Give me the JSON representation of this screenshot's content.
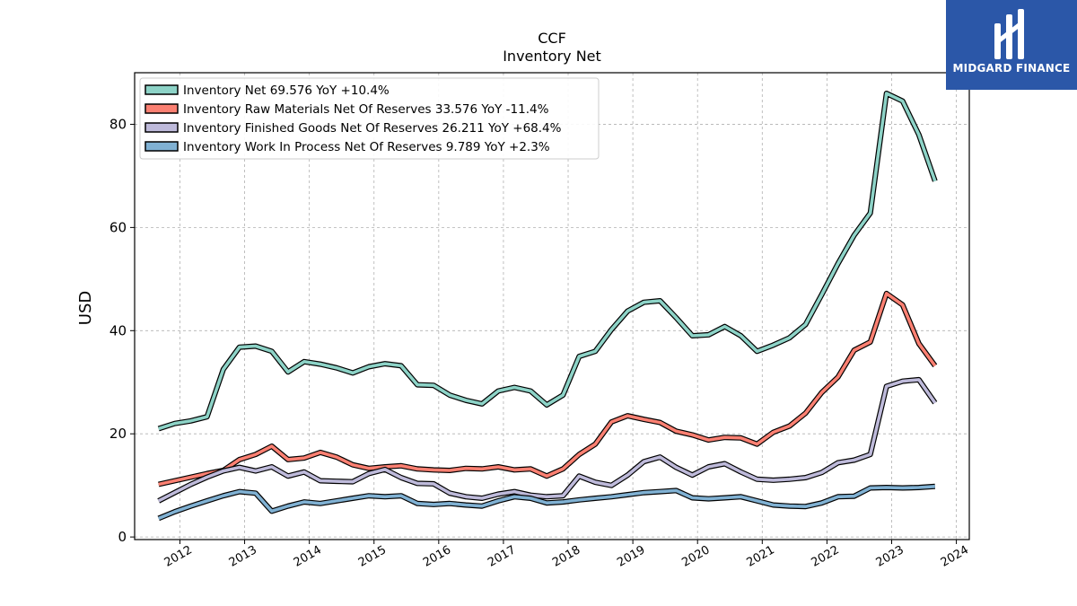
{
  "brand": {
    "name": "MIDGARD FINANCE",
    "logo_icon": "midgard-logo-icon",
    "background": "#2b57a8"
  },
  "chart_data": {
    "type": "line",
    "title": "CCF",
    "subtitle": "Inventory Net",
    "xlabel": "",
    "ylabel": "USD",
    "xlim": [
      2011.3,
      2024.2
    ],
    "ylim": [
      -0.5,
      90
    ],
    "x_ticks": [
      "2012",
      "2013",
      "2014",
      "2015",
      "2016",
      "2017",
      "2018",
      "2019",
      "2020",
      "2021",
      "2022",
      "2023",
      "2024"
    ],
    "y_ticks": [
      "0",
      "20",
      "40",
      "60",
      "80"
    ],
    "grid": true,
    "legend_position": "top-left",
    "series": [
      {
        "name": "Inventory Net  69.576 YoY +10.4%",
        "color": "#8dd3c7",
        "x": [
          2011.67,
          2011.92,
          2012.17,
          2012.42,
          2012.67,
          2012.92,
          2013.17,
          2013.42,
          2013.67,
          2013.92,
          2014.17,
          2014.42,
          2014.67,
          2014.92,
          2015.17,
          2015.42,
          2015.67,
          2015.92,
          2016.17,
          2016.42,
          2016.67,
          2016.92,
          2017.17,
          2017.42,
          2017.67,
          2017.92,
          2018.17,
          2018.42,
          2018.67,
          2018.92,
          2019.17,
          2019.42,
          2019.67,
          2019.92,
          2020.17,
          2020.42,
          2020.67,
          2020.92,
          2021.17,
          2021.42,
          2021.67,
          2021.92,
          2022.17,
          2022.42,
          2022.67,
          2022.92,
          2023.17,
          2023.42,
          2023.67
        ],
        "values": [
          21.0,
          22.0,
          22.5,
          23.3,
          32.5,
          36.8,
          37.0,
          36.0,
          32.0,
          34.0,
          33.5,
          32.8,
          31.8,
          33.0,
          33.6,
          33.2,
          29.5,
          29.4,
          27.5,
          26.5,
          25.8,
          28.3,
          29.0,
          28.3,
          25.6,
          27.5,
          35.0,
          36.0,
          40.2,
          43.8,
          45.5,
          45.8,
          42.5,
          39.0,
          39.2,
          40.8,
          39.0,
          36.0,
          37.2,
          38.6,
          41.2,
          47.0,
          53.0,
          58.5,
          62.8,
          86.0,
          84.5,
          78.0,
          69.0
        ]
      },
      {
        "name": "Inventory Raw Materials Net Of Reserves  33.576 YoY -11.4%",
        "color": "#fb8072",
        "x": [
          2011.67,
          2011.92,
          2012.17,
          2012.42,
          2012.67,
          2012.92,
          2013.17,
          2013.42,
          2013.67,
          2013.92,
          2014.17,
          2014.42,
          2014.67,
          2014.92,
          2015.17,
          2015.42,
          2015.67,
          2015.92,
          2016.17,
          2016.42,
          2016.67,
          2016.92,
          2017.17,
          2017.42,
          2017.67,
          2017.92,
          2018.17,
          2018.42,
          2018.67,
          2018.92,
          2019.17,
          2019.42,
          2019.67,
          2019.92,
          2020.17,
          2020.42,
          2020.67,
          2020.92,
          2021.17,
          2021.42,
          2021.67,
          2021.92,
          2022.17,
          2022.42,
          2022.67,
          2022.92,
          2023.17,
          2023.42,
          2023.67
        ],
        "values": [
          10.2,
          10.9,
          11.6,
          12.3,
          12.9,
          15.0,
          16.0,
          17.6,
          15.0,
          15.3,
          16.4,
          15.5,
          14.0,
          13.3,
          13.6,
          13.8,
          13.2,
          13.0,
          12.9,
          13.3,
          13.2,
          13.6,
          13.0,
          13.2,
          11.8,
          13.2,
          16.0,
          18.0,
          22.3,
          23.5,
          22.8,
          22.2,
          20.5,
          19.8,
          18.8,
          19.3,
          19.2,
          18.0,
          20.3,
          21.5,
          24.0,
          28.0,
          31.0,
          36.2,
          37.8,
          47.2,
          45.0,
          37.5,
          33.2
        ]
      },
      {
        "name": "Inventory Finished Goods Net Of Reserves  26.211 YoY +68.4%",
        "color": "#bebada",
        "x": [
          2011.67,
          2011.92,
          2012.17,
          2012.42,
          2012.67,
          2012.92,
          2013.17,
          2013.42,
          2013.67,
          2013.92,
          2014.17,
          2014.42,
          2014.67,
          2014.92,
          2015.17,
          2015.42,
          2015.67,
          2015.92,
          2016.17,
          2016.42,
          2016.67,
          2016.92,
          2017.17,
          2017.42,
          2017.67,
          2017.92,
          2018.17,
          2018.42,
          2018.67,
          2018.92,
          2019.17,
          2019.42,
          2019.67,
          2019.92,
          2020.17,
          2020.42,
          2020.67,
          2020.92,
          2021.17,
          2021.42,
          2021.67,
          2021.92,
          2022.17,
          2022.42,
          2022.67,
          2022.92,
          2023.17,
          2023.42,
          2023.67
        ],
        "values": [
          7.0,
          8.6,
          10.2,
          11.6,
          12.8,
          13.5,
          12.8,
          13.6,
          11.8,
          12.6,
          10.9,
          10.8,
          10.7,
          12.3,
          13.1,
          11.5,
          10.4,
          10.3,
          8.5,
          7.8,
          7.5,
          8.3,
          8.8,
          8.1,
          7.8,
          8.0,
          11.8,
          10.6,
          10.0,
          12.0,
          14.6,
          15.5,
          13.5,
          12.0,
          13.6,
          14.2,
          12.6,
          11.2,
          11.0,
          11.2,
          11.5,
          12.5,
          14.4,
          14.9,
          16.0,
          29.2,
          30.2,
          30.5,
          26.0
        ]
      },
      {
        "name": "Inventory Work In Process Net Of Reserves  9.789 YoY +2.3%",
        "color": "#80b1d3",
        "x": [
          2011.67,
          2011.92,
          2012.17,
          2012.42,
          2012.67,
          2012.92,
          2013.17,
          2013.42,
          2013.67,
          2013.92,
          2014.17,
          2014.42,
          2014.67,
          2014.92,
          2015.17,
          2015.42,
          2015.67,
          2015.92,
          2016.17,
          2016.42,
          2016.67,
          2016.92,
          2017.17,
          2017.42,
          2017.67,
          2017.92,
          2018.17,
          2018.42,
          2018.67,
          2018.92,
          2019.17,
          2019.42,
          2019.67,
          2019.92,
          2020.17,
          2020.42,
          2020.67,
          2020.92,
          2021.17,
          2021.42,
          2021.67,
          2021.92,
          2022.17,
          2022.42,
          2022.67,
          2022.92,
          2023.17,
          2023.42,
          2023.67
        ],
        "values": [
          3.6,
          4.9,
          6.0,
          7.0,
          8.0,
          8.8,
          8.5,
          5.0,
          6.0,
          6.8,
          6.5,
          7.0,
          7.5,
          8.0,
          7.8,
          8.0,
          6.5,
          6.3,
          6.5,
          6.2,
          6.0,
          7.0,
          7.8,
          7.5,
          6.6,
          6.8,
          7.2,
          7.5,
          7.8,
          8.2,
          8.6,
          8.8,
          9.0,
          7.6,
          7.4,
          7.6,
          7.8,
          7.0,
          6.2,
          6.0,
          5.9,
          6.6,
          7.8,
          7.9,
          9.5,
          9.6,
          9.5,
          9.6,
          9.8
        ]
      }
    ]
  }
}
